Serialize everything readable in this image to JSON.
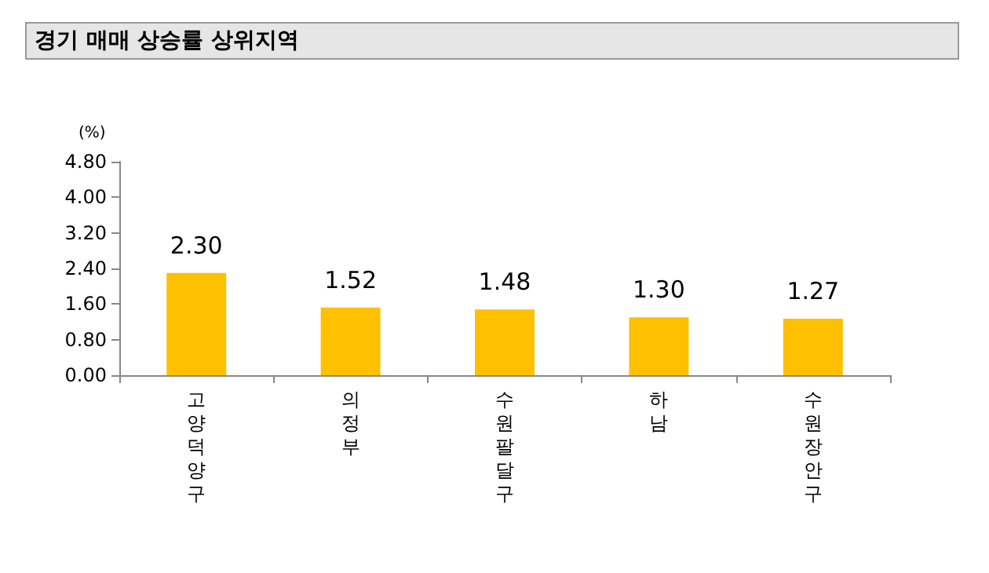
{
  "chart_data": {
    "type": "bar",
    "title": "경기 매매 상승률 상위지역",
    "ylabel": "(%)",
    "categories": [
      "고양덕양구",
      "의정부",
      "수원팔달구",
      "하남",
      "수원장안구"
    ],
    "values": [
      2.3,
      1.52,
      1.48,
      1.3,
      1.27
    ],
    "value_labels": [
      "2.30",
      "1.52",
      "1.48",
      "1.30",
      "1.27"
    ],
    "color": "#ffc000",
    "ylim": [
      0,
      4.8
    ],
    "yticks": [
      {
        "value": 0,
        "label": "0.00"
      },
      {
        "value": 0.8,
        "label": "0.80"
      },
      {
        "value": 1.6,
        "label": "1.60"
      },
      {
        "value": 2.4,
        "label": "2.40"
      },
      {
        "value": 3.2,
        "label": "3.20"
      },
      {
        "value": 4.0,
        "label": "4.00"
      },
      {
        "value": 4.8,
        "label": "4.80"
      }
    ],
    "grid": false
  }
}
